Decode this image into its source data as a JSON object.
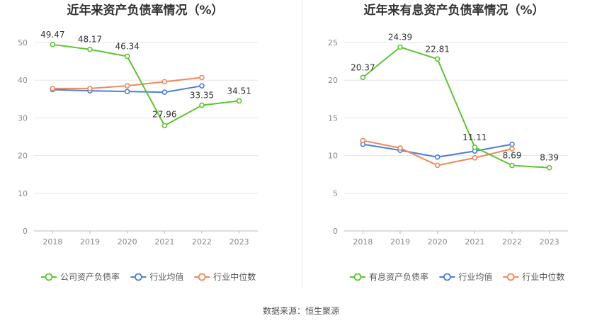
{
  "footer": "数据来源：恒生聚源",
  "colors": {
    "company": "#5cc630",
    "avg": "#4a7fdc",
    "median": "#f0885c",
    "axis_text": "#888888",
    "grid": "#e6e6e6"
  },
  "chart_data": [
    {
      "type": "line",
      "title": "近年来资产负债率情况（%）",
      "categories": [
        "2018",
        "2019",
        "2020",
        "2021",
        "2022",
        "2023"
      ],
      "ylim": [
        0,
        50
      ],
      "yticks": [
        0,
        10,
        20,
        30,
        40,
        50
      ],
      "series": [
        {
          "name": "公司资产负债率",
          "key": "company",
          "values": [
            49.47,
            48.17,
            46.34,
            27.96,
            33.35,
            34.51
          ],
          "labels": [
            "49.47",
            "48.17",
            "46.34",
            "27.96",
            "33.35",
            "34.51"
          ],
          "label_pos": [
            "above",
            "above",
            "above",
            "below",
            "above",
            "above"
          ]
        },
        {
          "name": "行业均值",
          "key": "avg",
          "values": [
            37.5,
            37.2,
            37.0,
            36.8,
            38.5,
            null
          ]
        },
        {
          "name": "行业中位数",
          "key": "median",
          "values": [
            37.8,
            37.8,
            38.5,
            39.6,
            40.7,
            null
          ]
        }
      ]
    },
    {
      "type": "line",
      "title": "近年来有息资产负债率情况（%）",
      "categories": [
        "2018",
        "2019",
        "2020",
        "2021",
        "2022",
        "2023"
      ],
      "ylim": [
        0,
        25
      ],
      "yticks": [
        0,
        5,
        10,
        15,
        20,
        25
      ],
      "series": [
        {
          "name": "有息资产负债率",
          "key": "company",
          "values": [
            20.37,
            24.39,
            22.81,
            11.11,
            8.69,
            8.39
          ],
          "labels": [
            "20.37",
            "24.39",
            "22.81",
            "11.11",
            "8.69",
            "8.39"
          ],
          "label_pos": [
            "above",
            "above",
            "above",
            "above",
            "above",
            "above"
          ]
        },
        {
          "name": "行业均值",
          "key": "avg",
          "values": [
            11.5,
            10.7,
            9.8,
            10.6,
            11.5,
            null
          ]
        },
        {
          "name": "行业中位数",
          "key": "median",
          "values": [
            12.0,
            11.0,
            8.7,
            9.7,
            10.9,
            null
          ]
        }
      ]
    }
  ]
}
